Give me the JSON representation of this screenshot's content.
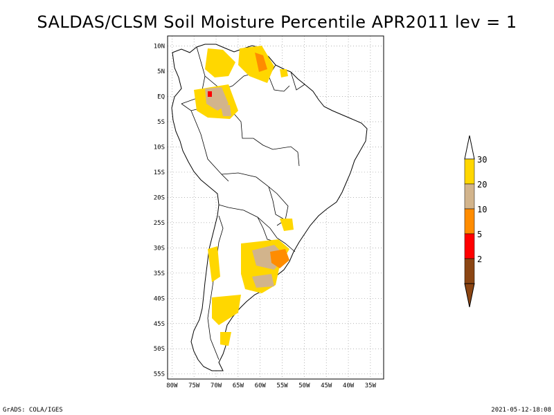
{
  "title": "SALDAS/CLSM Soil Moisture Percentile APR2011 lev = 1",
  "lat_ticks": [
    "10N",
    "5N",
    "EQ",
    "5S",
    "10S",
    "15S",
    "20S",
    "25S",
    "30S",
    "35S",
    "40S",
    "45S",
    "50S",
    "55S"
  ],
  "lon_ticks": [
    "80W",
    "75W",
    "70W",
    "65W",
    "60W",
    "55W",
    "50W",
    "45W",
    "40W",
    "35W"
  ],
  "extent": {
    "lon_min": -81,
    "lon_max": -32,
    "lat_min": -56,
    "lat_max": 12
  },
  "legend": {
    "bins": [
      {
        "label": "30",
        "color": "#ffd700"
      },
      {
        "label": "20",
        "color": "#d2b48c"
      },
      {
        "label": "10",
        "color": "#ff8c00"
      },
      {
        "label": "5",
        "color": "#ff0000"
      },
      {
        "label": "2",
        "color": "#8b4513"
      }
    ],
    "over_color": "#ffffff",
    "under_color": "#8b4513"
  },
  "colors": {
    "yellow": "#ffd700",
    "tan": "#d2b48c",
    "orange": "#ff8c00",
    "red": "#ff0000"
  },
  "footer": {
    "left": "GrADS: COLA/IGES",
    "right": "2021-05-12-18:08"
  }
}
